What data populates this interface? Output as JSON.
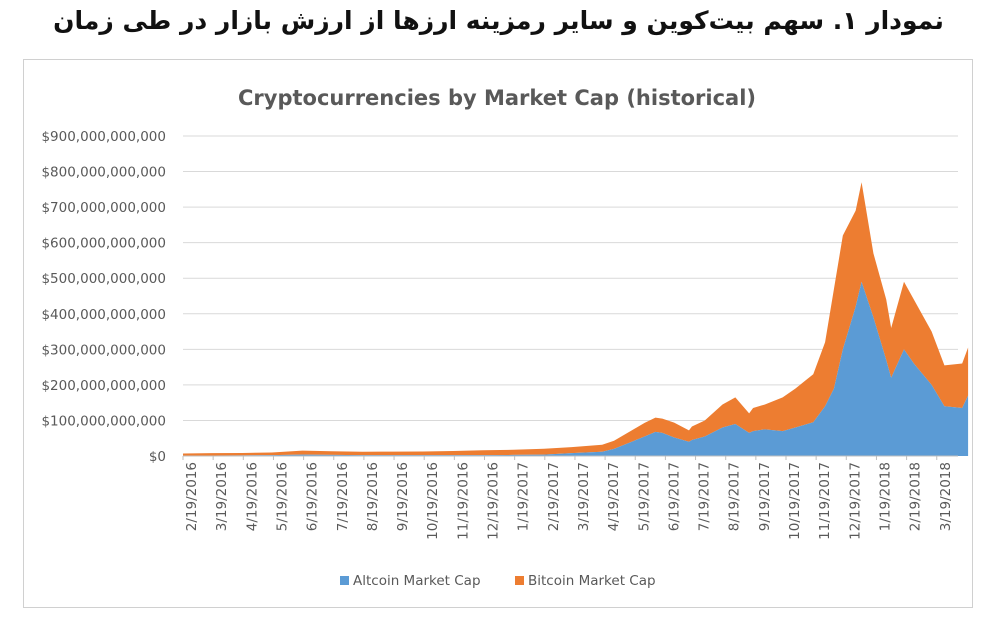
{
  "caption": "نمودار ۱. سهم بیت‌کوین و سایر رمزینه ارزها از ارزش بازار در طی زمان",
  "chart_data": {
    "type": "area",
    "stacked": true,
    "title": "Cryptocurrencies by Market Cap (historical)",
    "xlabel": "",
    "ylabel": "",
    "ylim": [
      0,
      900000000000
    ],
    "y_ticks": [
      0,
      100000000000,
      200000000000,
      300000000000,
      400000000000,
      500000000000,
      600000000000,
      700000000000,
      800000000000,
      900000000000
    ],
    "y_tick_labels": [
      "$0",
      "$100,000,000,000",
      "$200,000,000,000",
      "$300,000,000,000",
      "$400,000,000,000",
      "$500,000,000,000",
      "$600,000,000,000",
      "$700,000,000,000",
      "$800,000,000,000",
      "$900,000,000,000"
    ],
    "x_range": [
      "2016-02-19",
      "2018-04-19"
    ],
    "x_tick_labels": [
      "2/19/2016",
      "3/19/2016",
      "4/19/2016",
      "5/19/2016",
      "6/19/2016",
      "7/19/2016",
      "8/19/2016",
      "9/19/2016",
      "10/19/2016",
      "11/19/2016",
      "12/19/2016",
      "1/19/2017",
      "2/19/2017",
      "3/19/2017",
      "4/19/2017",
      "5/19/2017",
      "6/19/2017",
      "7/19/2017",
      "8/19/2017",
      "9/19/2017",
      "10/19/2017",
      "11/19/2017",
      "12/19/2017",
      "1/19/2018",
      "2/19/2018",
      "3/19/2018"
    ],
    "grid": true,
    "legend_position": "bottom",
    "x": [
      "2016-02-19",
      "2016-03-19",
      "2016-04-19",
      "2016-05-19",
      "2016-06-19",
      "2016-07-19",
      "2016-08-19",
      "2016-09-19",
      "2016-10-19",
      "2016-11-19",
      "2016-12-19",
      "2017-01-19",
      "2017-02-19",
      "2017-03-19",
      "2017-04-19",
      "2017-05-01",
      "2017-05-19",
      "2017-06-01",
      "2017-06-12",
      "2017-06-19",
      "2017-07-01",
      "2017-07-16",
      "2017-07-19",
      "2017-08-01",
      "2017-08-19",
      "2017-09-01",
      "2017-09-15",
      "2017-09-19",
      "2017-10-01",
      "2017-10-19",
      "2017-11-01",
      "2017-11-19",
      "2017-12-01",
      "2017-12-10",
      "2017-12-19",
      "2018-01-01",
      "2018-01-07",
      "2018-01-19",
      "2018-02-01",
      "2018-02-06",
      "2018-02-19",
      "2018-03-01",
      "2018-03-19",
      "2018-04-01",
      "2018-04-19",
      "2018-04-25"
    ],
    "series": [
      {
        "name": "Altcoin Market Cap",
        "color": "#5B9BD5",
        "values": [
          1000000000,
          1500000000,
          1600000000,
          2500000000,
          4000000000,
          3000000000,
          2500000000,
          2500000000,
          2500000000,
          2500000000,
          2500000000,
          3000000000,
          4000000000,
          8000000000,
          12000000000,
          20000000000,
          40000000000,
          55000000000,
          68000000000,
          65000000000,
          52000000000,
          40000000000,
          45000000000,
          55000000000,
          80000000000,
          90000000000,
          65000000000,
          70000000000,
          75000000000,
          70000000000,
          80000000000,
          95000000000,
          140000000000,
          190000000000,
          300000000000,
          420000000000,
          490000000000,
          390000000000,
          270000000000,
          220000000000,
          300000000000,
          260000000000,
          200000000000,
          140000000000,
          135000000000,
          170000000000
        ]
      },
      {
        "name": "Bitcoin Market Cap",
        "color": "#ED7D31",
        "values": [
          6000000000,
          6500000000,
          6800000000,
          7500000000,
          11000000000,
          10500000000,
          9500000000,
          9800000000,
          10200000000,
          11500000000,
          13500000000,
          14500000000,
          16500000000,
          17000000000,
          19500000000,
          23000000000,
          32000000000,
          38000000000,
          40000000000,
          40000000000,
          42000000000,
          32000000000,
          38000000000,
          45000000000,
          65000000000,
          75000000000,
          55000000000,
          65000000000,
          70000000000,
          95000000000,
          110000000000,
          135000000000,
          180000000000,
          280000000000,
          320000000000,
          270000000000,
          280000000000,
          180000000000,
          170000000000,
          140000000000,
          190000000000,
          180000000000,
          150000000000,
          115000000000,
          125000000000,
          135000000000
        ]
      }
    ]
  }
}
